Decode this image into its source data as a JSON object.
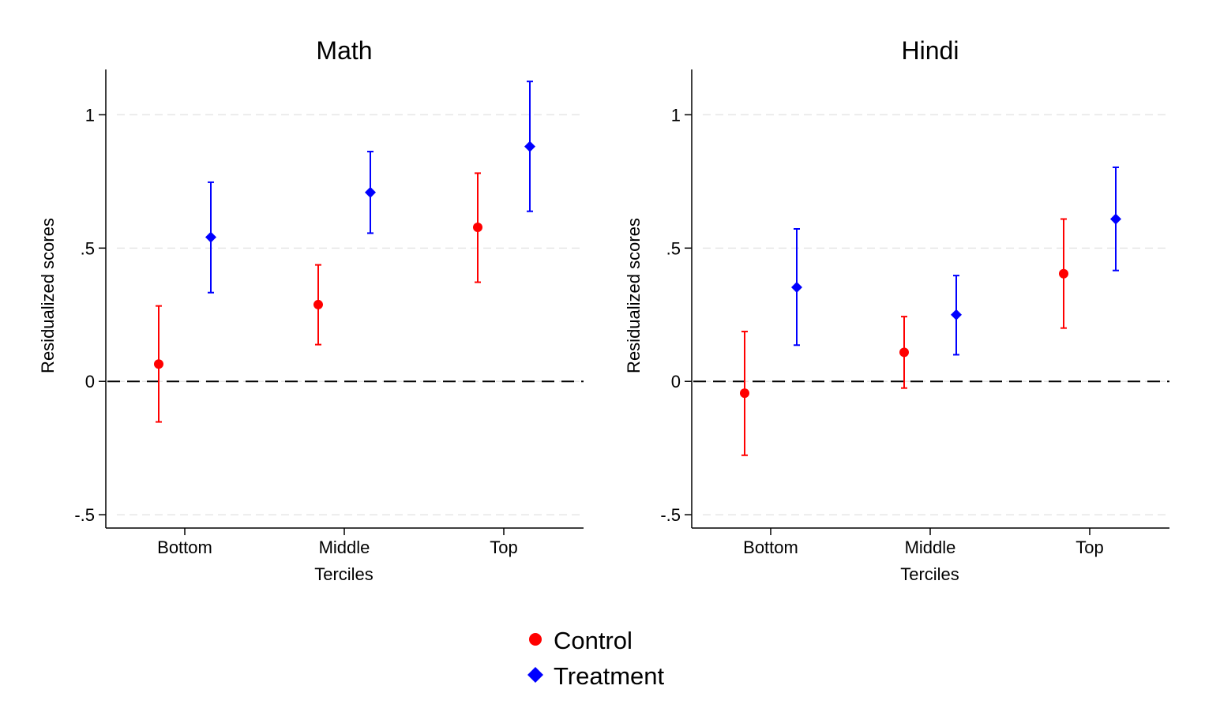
{
  "chart_data": [
    {
      "type": "scatter",
      "title": "Math",
      "xlabel": "Terciles",
      "ylabel": "Residualized scores",
      "categories": [
        "Bottom",
        "Middle",
        "Top"
      ],
      "ylim": [
        -0.55,
        1.17
      ],
      "yticks": [
        -0.5,
        0,
        0.5,
        1
      ],
      "ytick_labels": [
        "-.5",
        "0",
        ".5",
        "1"
      ],
      "grid": true,
      "reference_line": 0,
      "series": [
        {
          "name": "Control",
          "color": "#ff0000",
          "marker": "circle",
          "values": [
            0.065,
            0.288,
            0.578
          ],
          "ci_low": [
            -0.152,
            0.138,
            0.372
          ],
          "ci_high": [
            0.283,
            0.437,
            0.781
          ]
        },
        {
          "name": "Treatment",
          "color": "#0000ff",
          "marker": "diamond",
          "values": [
            0.541,
            0.709,
            0.881
          ],
          "ci_low": [
            0.333,
            0.556,
            0.638
          ],
          "ci_high": [
            0.747,
            0.862,
            1.125
          ]
        }
      ]
    },
    {
      "type": "scatter",
      "title": "Hindi",
      "xlabel": "Terciles",
      "ylabel": "Residualized scores",
      "categories": [
        "Bottom",
        "Middle",
        "Top"
      ],
      "ylim": [
        -0.55,
        1.17
      ],
      "yticks": [
        -0.5,
        0,
        0.5,
        1
      ],
      "ytick_labels": [
        "-.5",
        "0",
        ".5",
        "1"
      ],
      "grid": true,
      "reference_line": 0,
      "series": [
        {
          "name": "Control",
          "color": "#ff0000",
          "marker": "circle",
          "values": [
            -0.044,
            0.109,
            0.404
          ],
          "ci_low": [
            -0.277,
            -0.025,
            0.2
          ],
          "ci_high": [
            0.187,
            0.243,
            0.609
          ]
        },
        {
          "name": "Treatment",
          "color": "#0000ff",
          "marker": "diamond",
          "values": [
            0.353,
            0.25,
            0.609
          ],
          "ci_low": [
            0.136,
            0.1,
            0.416
          ],
          "ci_high": [
            0.572,
            0.397,
            0.803
          ]
        }
      ]
    }
  ],
  "legend": {
    "placement": "bottom-center",
    "items": [
      {
        "label": "Control",
        "color": "#ff0000",
        "marker": "circle"
      },
      {
        "label": "Treatment",
        "color": "#0000ff",
        "marker": "diamond"
      }
    ]
  }
}
